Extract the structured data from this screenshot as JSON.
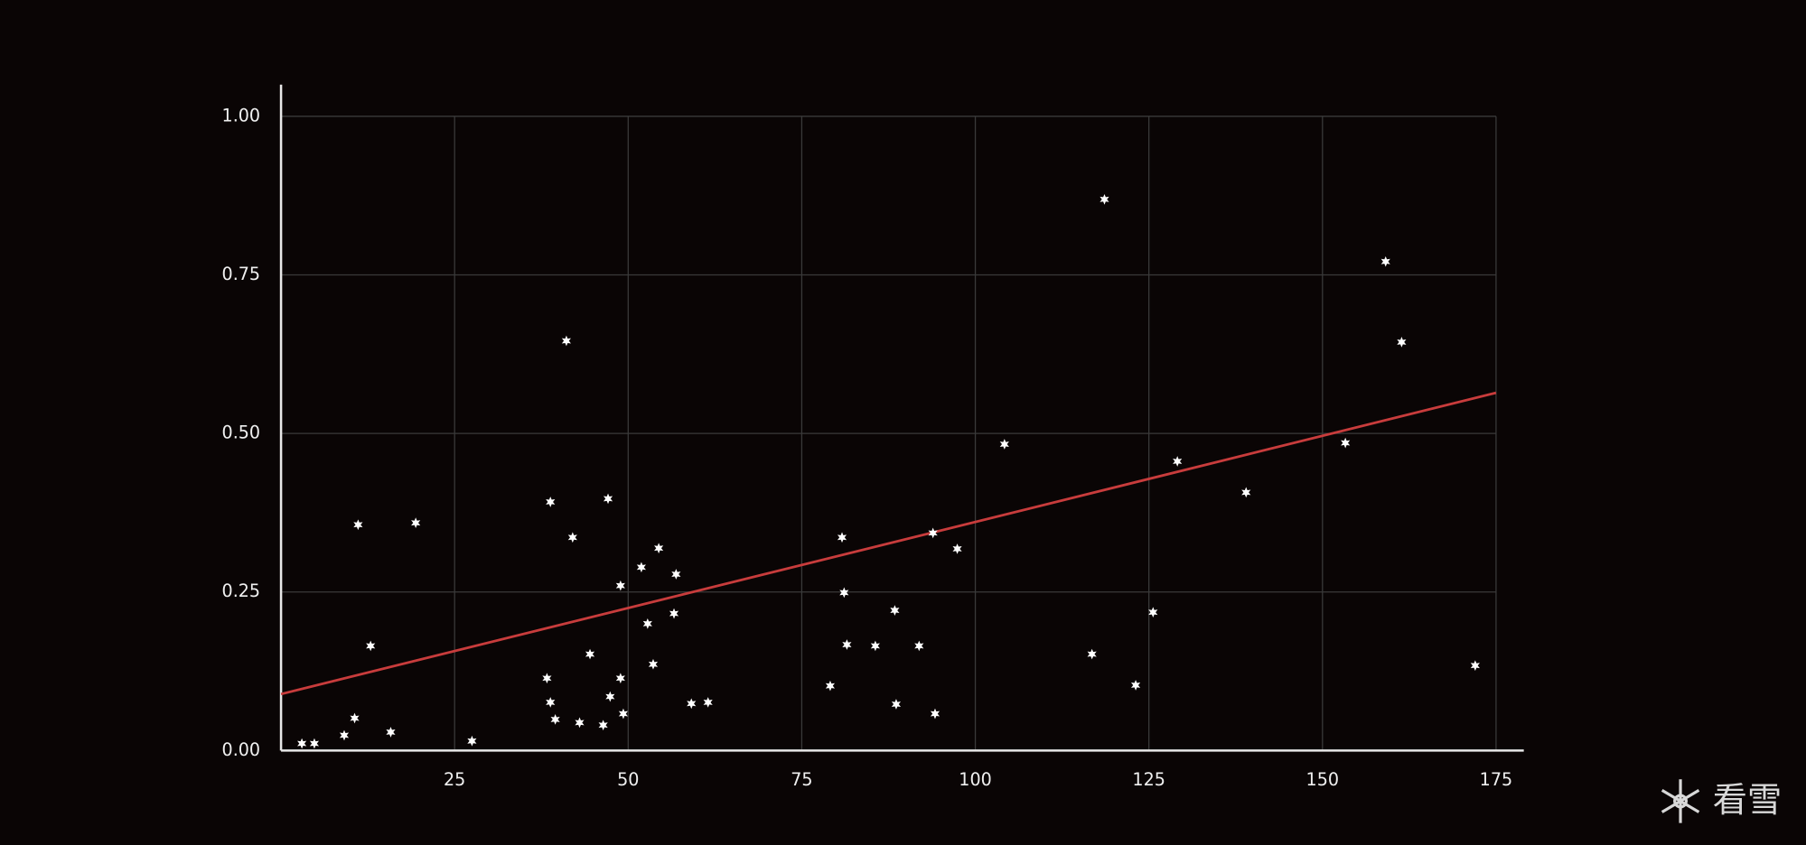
{
  "chart_data": {
    "type": "scatter",
    "x": [
      3.0,
      4.8,
      9.1,
      10.6,
      11.1,
      12.9,
      15.8,
      19.4,
      27.5,
      38.3,
      38.8,
      38.8,
      39.5,
      41.1,
      42.0,
      43.0,
      44.5,
      46.4,
      47.1,
      47.4,
      48.9,
      48.9,
      49.3,
      51.9,
      52.8,
      53.6,
      54.4,
      56.6,
      56.9,
      59.1,
      61.5,
      79.1,
      80.8,
      81.1,
      81.5,
      85.6,
      88.4,
      88.6,
      91.9,
      93.9,
      94.2,
      97.4,
      104.2,
      116.8,
      118.6,
      123.1,
      125.6,
      129.1,
      139.0,
      153.3,
      159.1,
      161.4,
      172.0
    ],
    "values": [
      0.011,
      0.011,
      0.024,
      0.051,
      0.356,
      0.165,
      0.029,
      0.359,
      0.015,
      0.114,
      0.392,
      0.076,
      0.049,
      0.646,
      0.336,
      0.044,
      0.152,
      0.04,
      0.397,
      0.085,
      0.26,
      0.114,
      0.058,
      0.289,
      0.2,
      0.136,
      0.319,
      0.216,
      0.278,
      0.074,
      0.076,
      0.102,
      0.336,
      0.249,
      0.167,
      0.165,
      0.221,
      0.073,
      0.165,
      0.343,
      0.058,
      0.318,
      0.483,
      0.152,
      0.869,
      0.103,
      0.218,
      0.456,
      0.407,
      0.485,
      0.771,
      0.644,
      0.134
    ],
    "color": "#ffffff",
    "trend_line": {
      "x": [
        0,
        175
      ],
      "values": [
        0.089,
        0.564
      ],
      "color": "#c83c3c"
    },
    "xlim": [
      0,
      179
    ],
    "ylim": [
      0,
      1.05
    ],
    "xticks": [
      25,
      50,
      75,
      100,
      125,
      150,
      175
    ],
    "yticks": [
      {
        "value": 0,
        "label": "0.00"
      },
      {
        "value": 0.25,
        "label": "0.25"
      },
      {
        "value": 0.5,
        "label": "0.50"
      },
      {
        "value": 0.75,
        "label": "0.75"
      },
      {
        "value": 1,
        "label": "1.00"
      }
    ],
    "grid": true
  },
  "watermark": "看雪"
}
